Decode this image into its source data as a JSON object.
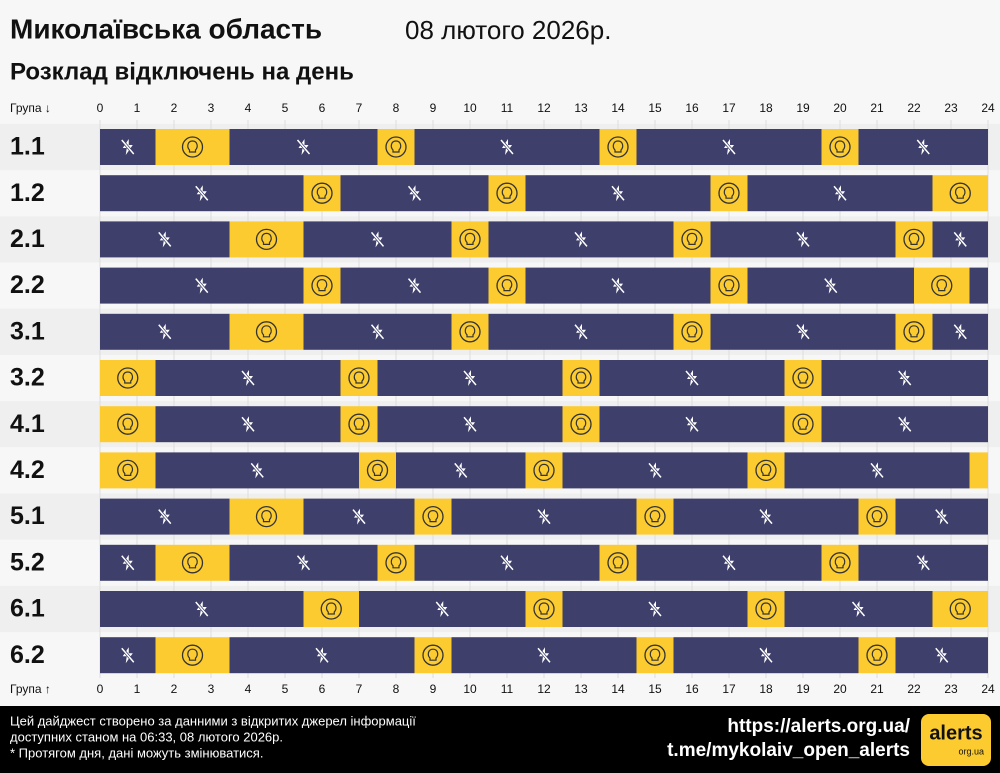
{
  "chart_data": {
    "type": "timeline",
    "title": "Миколаївська область",
    "date": "08 лютого 2026р.",
    "subtitle": "Розклад відключень на день",
    "top_axis_label": "Група ↓",
    "bottom_axis_label": "Група ↑",
    "xlim": [
      0,
      24
    ],
    "xticks": [
      0,
      1,
      2,
      3,
      4,
      5,
      6,
      7,
      8,
      9,
      10,
      11,
      12,
      13,
      14,
      15,
      16,
      17,
      18,
      19,
      20,
      21,
      22,
      23,
      24
    ],
    "colors": {
      "off": "#3e3f6b",
      "on": "#fccb2f"
    },
    "groups": [
      {
        "name": "1.1",
        "off": [
          [
            0,
            1.5
          ],
          [
            3.5,
            7.5
          ],
          [
            8.5,
            13.5
          ],
          [
            14.5,
            19.5
          ],
          [
            20.5,
            24
          ]
        ],
        "on": [
          [
            1.5,
            3.5
          ],
          [
            7.5,
            8.5
          ],
          [
            13.5,
            14.5
          ],
          [
            19.5,
            20.5
          ]
        ]
      },
      {
        "name": "1.2",
        "off": [
          [
            0,
            5.5
          ],
          [
            6.5,
            10.5
          ],
          [
            11.5,
            16.5
          ],
          [
            17.5,
            22.5
          ]
        ],
        "on": [
          [
            5.5,
            6.5
          ],
          [
            10.5,
            11.5
          ],
          [
            16.5,
            17.5
          ],
          [
            22.5,
            24
          ]
        ]
      },
      {
        "name": "2.1",
        "off": [
          [
            0,
            3.5
          ],
          [
            5.5,
            9.5
          ],
          [
            10.5,
            15.5
          ],
          [
            16.5,
            21.5
          ],
          [
            22.5,
            24
          ]
        ],
        "on": [
          [
            3.5,
            5.5
          ],
          [
            9.5,
            10.5
          ],
          [
            15.5,
            16.5
          ],
          [
            21.5,
            22.5
          ]
        ]
      },
      {
        "name": "2.2",
        "off": [
          [
            0,
            5.5
          ],
          [
            6.5,
            10.5
          ],
          [
            11.5,
            16.5
          ],
          [
            17.5,
            22
          ],
          [
            23.5,
            24
          ]
        ],
        "on": [
          [
            5.5,
            6.5
          ],
          [
            10.5,
            11.5
          ],
          [
            16.5,
            17.5
          ],
          [
            22,
            23.5
          ]
        ]
      },
      {
        "name": "3.1",
        "off": [
          [
            0,
            3.5
          ],
          [
            5.5,
            9.5
          ],
          [
            10.5,
            15.5
          ],
          [
            16.5,
            21.5
          ],
          [
            22.5,
            24
          ]
        ],
        "on": [
          [
            3.5,
            5.5
          ],
          [
            9.5,
            10.5
          ],
          [
            15.5,
            16.5
          ],
          [
            21.5,
            22.5
          ]
        ]
      },
      {
        "name": "3.2",
        "off": [
          [
            1.5,
            6.5
          ],
          [
            7.5,
            12.5
          ],
          [
            13.5,
            18.5
          ],
          [
            19.5,
            24
          ]
        ],
        "on": [
          [
            0,
            1.5
          ],
          [
            6.5,
            7.5
          ],
          [
            12.5,
            13.5
          ],
          [
            18.5,
            19.5
          ]
        ]
      },
      {
        "name": "4.1",
        "off": [
          [
            1.5,
            6.5
          ],
          [
            7.5,
            12.5
          ],
          [
            13.5,
            18.5
          ],
          [
            19.5,
            24
          ]
        ],
        "on": [
          [
            0,
            1.5
          ],
          [
            6.5,
            7.5
          ],
          [
            12.5,
            13.5
          ],
          [
            18.5,
            19.5
          ]
        ]
      },
      {
        "name": "4.2",
        "off": [
          [
            1.5,
            7
          ],
          [
            8,
            11.5
          ],
          [
            12.5,
            17.5
          ],
          [
            18.5,
            23.5
          ]
        ],
        "on": [
          [
            0,
            1.5
          ],
          [
            7,
            8
          ],
          [
            11.5,
            12.5
          ],
          [
            17.5,
            18.5
          ],
          [
            23.5,
            24
          ]
        ]
      },
      {
        "name": "5.1",
        "off": [
          [
            0,
            3.5
          ],
          [
            5.5,
            8.5
          ],
          [
            9.5,
            14.5
          ],
          [
            15.5,
            20.5
          ],
          [
            21.5,
            24
          ]
        ],
        "on": [
          [
            3.5,
            5.5
          ],
          [
            8.5,
            9.5
          ],
          [
            14.5,
            15.5
          ],
          [
            20.5,
            21.5
          ]
        ]
      },
      {
        "name": "5.2",
        "off": [
          [
            0,
            1.5
          ],
          [
            3.5,
            7.5
          ],
          [
            8.5,
            13.5
          ],
          [
            14.5,
            19.5
          ],
          [
            20.5,
            24
          ]
        ],
        "on": [
          [
            1.5,
            3.5
          ],
          [
            7.5,
            8.5
          ],
          [
            13.5,
            14.5
          ],
          [
            19.5,
            20.5
          ]
        ]
      },
      {
        "name": "6.1",
        "off": [
          [
            0,
            5.5
          ],
          [
            7,
            11.5
          ],
          [
            12.5,
            17.5
          ],
          [
            18.5,
            22.5
          ]
        ],
        "on": [
          [
            5.5,
            7
          ],
          [
            11.5,
            12.5
          ],
          [
            17.5,
            18.5
          ],
          [
            22.5,
            24
          ]
        ]
      },
      {
        "name": "6.2",
        "off": [
          [
            0,
            1.5
          ],
          [
            3.5,
            8.5
          ],
          [
            9.5,
            14.5
          ],
          [
            15.5,
            20.5
          ],
          [
            21.5,
            24
          ]
        ],
        "on": [
          [
            1.5,
            3.5
          ],
          [
            8.5,
            9.5
          ],
          [
            14.5,
            15.5
          ],
          [
            20.5,
            21.5
          ]
        ]
      }
    ]
  },
  "footer": {
    "notes": [
      "Цей дайджест створено за данними з відкритих джерел інформації",
      "доступних станом на 06:33, 08 лютого 2026р.",
      "* Протягом дня, дані можуть змінюватися."
    ],
    "links": [
      "https://alerts.org.ua/",
      "t.me/mykolaiv_open_alerts"
    ],
    "logo": {
      "name": "alerts",
      "domain": "org.ua"
    }
  }
}
